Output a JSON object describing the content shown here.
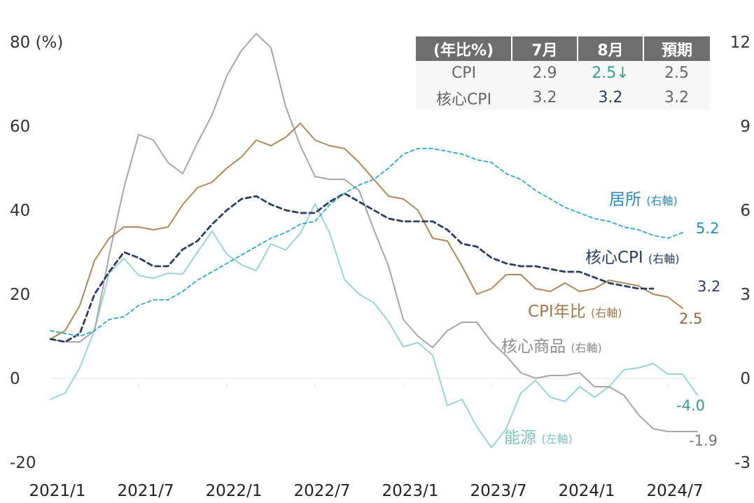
{
  "chart_data": {
    "type": "line",
    "x_ticks": [
      "2021/1",
      "2021/7",
      "2022/1",
      "2022/7",
      "2023/1",
      "2023/7",
      "2024/1",
      "2024/7"
    ],
    "x_start": "2021/1",
    "x_end": "2024/8",
    "left_axis": {
      "label": "80 (%)",
      "ticks": [
        "80 (%)",
        "60",
        "40",
        "20",
        "0",
        "-20"
      ],
      "tick_values": [
        80,
        60,
        40,
        20,
        0,
        -20
      ],
      "range": [
        -20,
        80
      ]
    },
    "right_axis": {
      "ticks": [
        "12",
        "9",
        "6",
        "3",
        "0",
        "-3"
      ],
      "tick_values": [
        12,
        9,
        6,
        3,
        0,
        -3
      ],
      "range": [
        -3,
        12
      ]
    },
    "series": [
      {
        "name": "能源",
        "axis_note": "(左軸)",
        "axis": "left",
        "color": "#9ed3cf",
        "style": "solid",
        "end_label": "-4.0",
        "end_label_color": "#3a9a92",
        "values": [
          -5,
          -3.5,
          2.5,
          11.5,
          25,
          28.5,
          24.5,
          23.8,
          25,
          24.8,
          30,
          35,
          29.5,
          27,
          25.6,
          32,
          30.5,
          34.5,
          41.5,
          34.5,
          23.5,
          20,
          18,
          13.5,
          7.5,
          8.5,
          5.5,
          -6.5,
          -5,
          -11.5,
          -16.5,
          -12,
          -3.5,
          -0.5,
          -4.5,
          -5.5,
          -2,
          -4.5,
          -2,
          2,
          2.5,
          3.5,
          1,
          1,
          -4
        ]
      },
      {
        "name": "核心商品",
        "axis_note": "(右軸)",
        "axis": "right",
        "color": "#a6a6a6",
        "style": "solid",
        "end_label": "-1.9",
        "end_label_color": "#777777",
        "values": [
          1.4,
          1.3,
          1.3,
          1.7,
          4.4,
          6.8,
          8.7,
          8.5,
          7.7,
          7.3,
          8.4,
          9.4,
          10.8,
          11.7,
          12.3,
          11.8,
          9.7,
          8.3,
          7.2,
          7.1,
          7.1,
          6.7,
          5.3,
          4.0,
          2.1,
          1.5,
          1.1,
          1.7,
          2.0,
          2.0,
          1.3,
          0.8,
          0.2,
          0,
          0.1,
          0.1,
          0.2,
          -0.3,
          -0.3,
          -0.6,
          -1.3,
          -1.8,
          -1.9,
          -1.9,
          -1.9
        ]
      },
      {
        "name": "CPI年比",
        "axis_note": "(右軸)",
        "axis": "right",
        "color": "#a88a5e",
        "style": "solid",
        "end_label": "2.5",
        "end_label_color": "#8a6a3e",
        "values": [
          1.4,
          1.7,
          2.6,
          4.2,
          5.0,
          5.4,
          5.4,
          5.3,
          5.4,
          6.2,
          6.8,
          7.0,
          7.5,
          7.9,
          8.5,
          8.3,
          8.6,
          9.1,
          8.5,
          8.3,
          8.2,
          7.7,
          7.1,
          6.5,
          6.4,
          6.0,
          5.0,
          4.9,
          4.0,
          3.0,
          3.2,
          3.7,
          3.7,
          3.2,
          3.1,
          3.4,
          3.1,
          3.2,
          3.5,
          3.4,
          3.3,
          3.0,
          2.9,
          2.5
        ]
      },
      {
        "name": "核心CPI",
        "axis_note": "(右軸)",
        "axis": "right",
        "color": "#2c3e5a",
        "style": "dashed",
        "end_label": "3.2",
        "end_label_color": "#2c3e5a",
        "values": [
          1.4,
          1.3,
          1.6,
          3.0,
          3.8,
          4.5,
          4.3,
          4.0,
          4.0,
          4.6,
          4.9,
          5.5,
          6.0,
          6.4,
          6.5,
          6.2,
          6.0,
          5.9,
          5.9,
          6.3,
          6.6,
          6.3,
          6.0,
          5.7,
          5.6,
          5.6,
          5.6,
          5.3,
          4.8,
          4.7,
          4.3,
          4.1,
          4.0,
          4.0,
          3.9,
          3.8,
          3.8,
          3.6,
          3.4,
          3.3,
          3.2,
          3.2
        ]
      },
      {
        "name": "居所",
        "axis_note": "(右軸)",
        "axis": "right",
        "color": "#3aa3c4",
        "style": "dashed",
        "end_label": "5.2",
        "end_label_color": "#2a8ab0",
        "values": [
          1.7,
          1.6,
          1.5,
          1.7,
          2.1,
          2.2,
          2.6,
          2.8,
          2.8,
          3.1,
          3.5,
          3.8,
          4.1,
          4.4,
          4.7,
          5.0,
          5.2,
          5.5,
          5.6,
          6.2,
          6.6,
          6.9,
          7.1,
          7.5,
          8.0,
          8.2,
          8.2,
          8.1,
          8.0,
          7.8,
          7.7,
          7.3,
          7.1,
          6.7,
          6.4,
          6.1,
          5.9,
          5.7,
          5.6,
          5.4,
          5.3,
          5.1,
          5.0,
          5.2
        ]
      }
    ]
  },
  "table": {
    "headers": [
      "(年比%)",
      "7月",
      "8月",
      "預期"
    ],
    "rows": [
      {
        "label": "CPI",
        "jul": "2.9",
        "aug": "2.5↓",
        "expected": "2.5"
      },
      {
        "label": "核心CPI",
        "jul": "3.2",
        "aug": "3.2",
        "expected": "3.2"
      }
    ],
    "colors": {
      "cpi_aug": "#3a9a92",
      "core_aug": "#2c3e5a"
    }
  }
}
